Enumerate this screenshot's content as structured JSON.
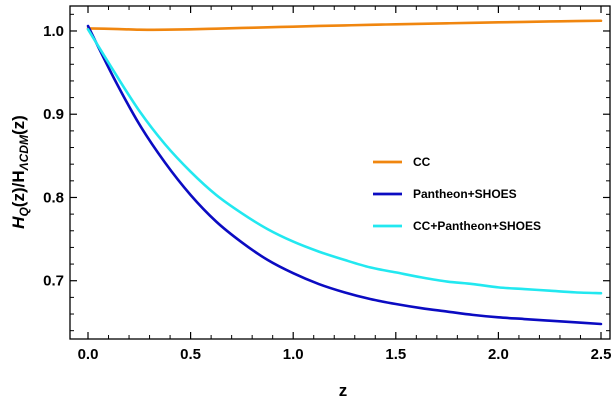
{
  "chart_data": {
    "type": "line",
    "xlabel": "z",
    "ylabel": "H_Q(z)/H_ΛCDM(z)",
    "ylabel_parts": {
      "main": "H",
      "sub1": "Q",
      "mid": "(z)/H",
      "sub2": "ΛCDM",
      "end": "(z)"
    },
    "xlim": [
      0,
      2.5
    ],
    "ylim": [
      0.63,
      1.03
    ],
    "x_ticks": [
      0.0,
      0.5,
      1.0,
      1.5,
      2.0,
      2.5
    ],
    "x_tick_labels": [
      "0.0",
      "0.5",
      "1.0",
      "1.5",
      "2.0",
      "2.5"
    ],
    "y_ticks": [
      0.7,
      0.8,
      0.9,
      1.0
    ],
    "y_tick_labels": [
      "0.7",
      "0.8",
      "0.9",
      "1.0"
    ],
    "grid": false,
    "legend_position": "right",
    "x": [
      0,
      0.125,
      0.25,
      0.375,
      0.5,
      0.625,
      0.75,
      0.875,
      1.0,
      1.125,
      1.25,
      1.375,
      1.5,
      1.625,
      1.75,
      1.875,
      2.0,
      2.125,
      2.25,
      2.375,
      2.5
    ],
    "series": [
      {
        "name": "CC",
        "color": "#f0860f",
        "values": [
          1.003,
          1.0025,
          1.0015,
          1.0015,
          1.002,
          1.0028,
          1.0036,
          1.0044,
          1.0052,
          1.006,
          1.0067,
          1.0074,
          1.008,
          1.0086,
          1.0092,
          1.0098,
          1.0104,
          1.0109,
          1.0114,
          1.0119,
          1.0123
        ]
      },
      {
        "name": "Pantheon+SHOES",
        "color": "#0b0bc2",
        "values": [
          1.006,
          0.944,
          0.888,
          0.842,
          0.803,
          0.771,
          0.746,
          0.725,
          0.709,
          0.696,
          0.686,
          0.678,
          0.672,
          0.667,
          0.663,
          0.659,
          0.656,
          0.654,
          0.652,
          0.65,
          0.648
        ]
      },
      {
        "name": "CC+Pantheon+SHOES",
        "color": "#22e8f0",
        "values": [
          1.002,
          0.952,
          0.904,
          0.864,
          0.831,
          0.803,
          0.781,
          0.762,
          0.747,
          0.735,
          0.725,
          0.716,
          0.71,
          0.704,
          0.699,
          0.696,
          0.692,
          0.69,
          0.688,
          0.686,
          0.685
        ]
      }
    ]
  }
}
